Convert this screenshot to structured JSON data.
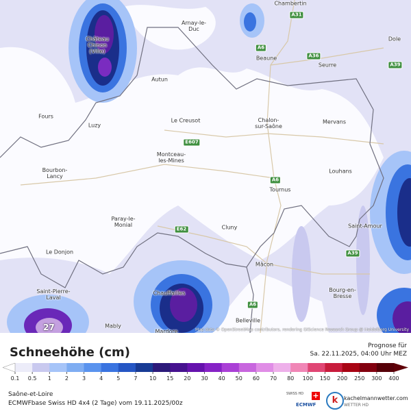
{
  "map": {
    "places": [
      "Chambertin",
      "Arnay-le-Duc",
      "Beaune",
      "Seurre",
      "Dole",
      "Château Chinon (Ville)",
      "Autun",
      "Le Creusot",
      "Chalon-sur-Saône",
      "Mervans",
      "Fours",
      "Luzy",
      "Montceau-les-Mines",
      "Bourbon-Lancy",
      "Louhans",
      "Tournus",
      "Paray-le-Monial",
      "Cluny",
      "Saint-Amour",
      "Le Donjon",
      "Mâcon",
      "Saint-Pierre-Laval",
      "Chauffailles",
      "Bourg-en-Bresse",
      "Mably",
      "Belleville",
      "Mardore"
    ],
    "roads": [
      "A31",
      "A6",
      "A36",
      "A39",
      "E607",
      "A6",
      "E62",
      "A39",
      "A6"
    ],
    "peak_value": "27",
    "attribution": "Map data © OpenStreetMap contributors, rendering GIScience Research Group @ Heidelberg University"
  },
  "legend": {
    "title": "Schneehöhe (cm)",
    "forecast_label": "Prognose für",
    "forecast_time": "Sa. 22.11.2025, 04:00 Uhr MEZ",
    "ticks": [
      0.1,
      0.5,
      1,
      2,
      3,
      4,
      5,
      7,
      10,
      15,
      20,
      30,
      40,
      50,
      60,
      70,
      80,
      100,
      150,
      200,
      250,
      300,
      400
    ],
    "colors": [
      "#ececf9",
      "#c9c9ef",
      "#a6c4f8",
      "#7fadf2",
      "#5a93ee",
      "#3a74e0",
      "#2556c4",
      "#183b94",
      "#2c1a7a",
      "#46128f",
      "#6512ad",
      "#8622c6",
      "#aa40d6",
      "#c866de",
      "#e08de6",
      "#eeb0ea",
      "#f086b6",
      "#e04674",
      "#c81c3c",
      "#a80414",
      "#82000f",
      "#560008"
    ],
    "low_color": "#ffffff",
    "high_color": "#600008"
  },
  "footer": {
    "region": "Saône-et-Loire",
    "model": "ECMWFbase Swiss HD 4x4 (2 Tage) vom 19.11.2025/00z",
    "badge_top": "SWISS HD",
    "badge_bottom": "ECMWF",
    "brand": "kachelmannwetter.com",
    "brand_sub": "WETTER HD"
  }
}
